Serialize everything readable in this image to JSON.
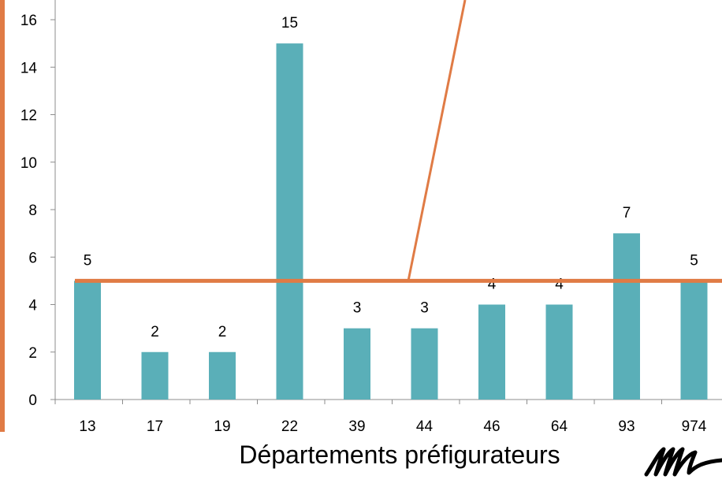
{
  "chart_data": {
    "type": "bar",
    "categories": [
      "13",
      "17",
      "19",
      "22",
      "39",
      "44",
      "46",
      "64",
      "93",
      "974"
    ],
    "values": [
      5,
      2,
      2,
      15,
      3,
      3,
      4,
      4,
      7,
      5
    ],
    "data_labels": [
      "5",
      "2",
      "2",
      "15",
      "3",
      "3",
      "4",
      "4",
      "7",
      "5"
    ],
    "title": "",
    "xlabel": "Départements préfigurateurs",
    "ylabel": "",
    "ylim": [
      0,
      16
    ],
    "yticks": [
      "0",
      "2",
      "4",
      "6",
      "8",
      "10",
      "12",
      "14",
      "16"
    ],
    "reference_line": {
      "value": 5
    },
    "grid": false,
    "legend": "none"
  },
  "colors": {
    "bar": "#5aafb8",
    "reference_line": "#e07b45",
    "left_border": "#e07b45",
    "axis": "#8c8c8c"
  },
  "icons": {
    "logo": "signature-logo"
  }
}
